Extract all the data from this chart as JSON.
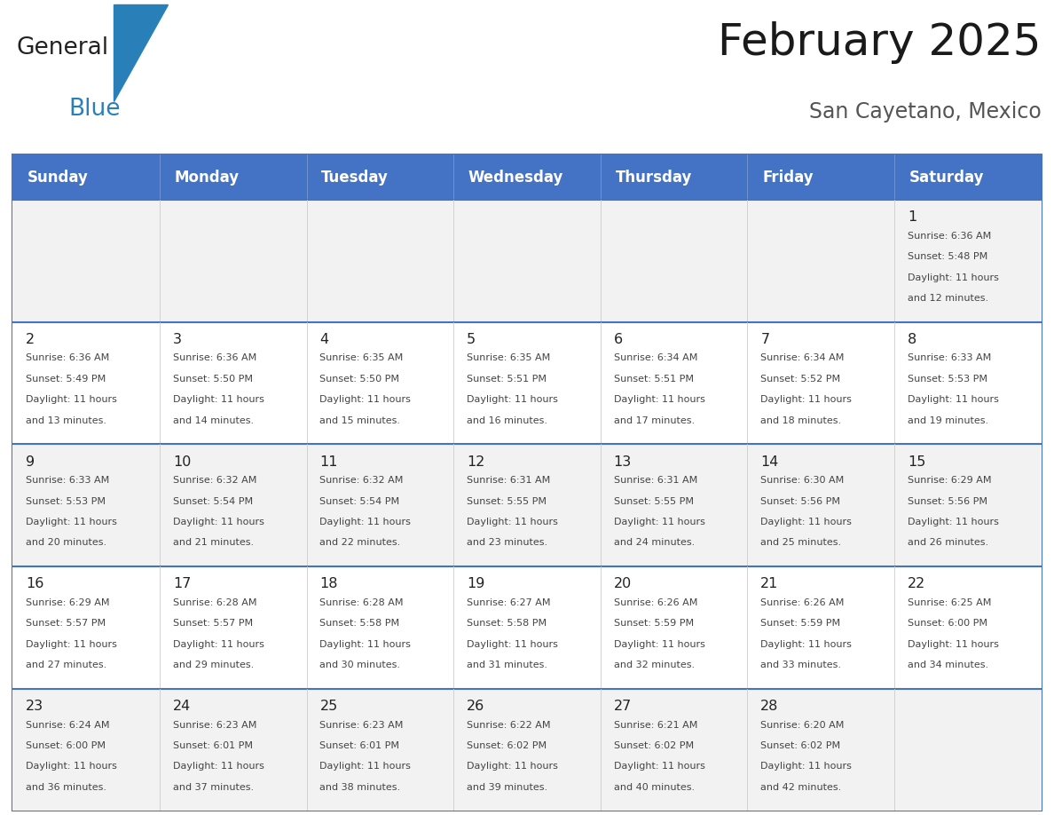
{
  "title": "February 2025",
  "subtitle": "San Cayetano, Mexico",
  "days_of_week": [
    "Sunday",
    "Monday",
    "Tuesday",
    "Wednesday",
    "Thursday",
    "Friday",
    "Saturday"
  ],
  "header_bg": "#4472C4",
  "header_text_color": "#FFFFFF",
  "cell_bg_light": "#F2F2F2",
  "cell_bg_white": "#FFFFFF",
  "cell_text_color": "#444444",
  "day_num_color": "#222222",
  "border_color": "#4472C4",
  "divider_color": "#CCCCCC",
  "logo_general_color": "#222222",
  "logo_blue_color": "#2980B9",
  "title_color": "#1a1a1a",
  "subtitle_color": "#555555",
  "calendar_data": [
    [
      null,
      null,
      null,
      null,
      null,
      null,
      {
        "day": "1",
        "sunrise": "6:36 AM",
        "sunset": "5:48 PM",
        "dl1": "Daylight: 11 hours",
        "dl2": "and 12 minutes."
      }
    ],
    [
      {
        "day": "2",
        "sunrise": "6:36 AM",
        "sunset": "5:49 PM",
        "dl1": "Daylight: 11 hours",
        "dl2": "and 13 minutes."
      },
      {
        "day": "3",
        "sunrise": "6:36 AM",
        "sunset": "5:50 PM",
        "dl1": "Daylight: 11 hours",
        "dl2": "and 14 minutes."
      },
      {
        "day": "4",
        "sunrise": "6:35 AM",
        "sunset": "5:50 PM",
        "dl1": "Daylight: 11 hours",
        "dl2": "and 15 minutes."
      },
      {
        "day": "5",
        "sunrise": "6:35 AM",
        "sunset": "5:51 PM",
        "dl1": "Daylight: 11 hours",
        "dl2": "and 16 minutes."
      },
      {
        "day": "6",
        "sunrise": "6:34 AM",
        "sunset": "5:51 PM",
        "dl1": "Daylight: 11 hours",
        "dl2": "and 17 minutes."
      },
      {
        "day": "7",
        "sunrise": "6:34 AM",
        "sunset": "5:52 PM",
        "dl1": "Daylight: 11 hours",
        "dl2": "and 18 minutes."
      },
      {
        "day": "8",
        "sunrise": "6:33 AM",
        "sunset": "5:53 PM",
        "dl1": "Daylight: 11 hours",
        "dl2": "and 19 minutes."
      }
    ],
    [
      {
        "day": "9",
        "sunrise": "6:33 AM",
        "sunset": "5:53 PM",
        "dl1": "Daylight: 11 hours",
        "dl2": "and 20 minutes."
      },
      {
        "day": "10",
        "sunrise": "6:32 AM",
        "sunset": "5:54 PM",
        "dl1": "Daylight: 11 hours",
        "dl2": "and 21 minutes."
      },
      {
        "day": "11",
        "sunrise": "6:32 AM",
        "sunset": "5:54 PM",
        "dl1": "Daylight: 11 hours",
        "dl2": "and 22 minutes."
      },
      {
        "day": "12",
        "sunrise": "6:31 AM",
        "sunset": "5:55 PM",
        "dl1": "Daylight: 11 hours",
        "dl2": "and 23 minutes."
      },
      {
        "day": "13",
        "sunrise": "6:31 AM",
        "sunset": "5:55 PM",
        "dl1": "Daylight: 11 hours",
        "dl2": "and 24 minutes."
      },
      {
        "day": "14",
        "sunrise": "6:30 AM",
        "sunset": "5:56 PM",
        "dl1": "Daylight: 11 hours",
        "dl2": "and 25 minutes."
      },
      {
        "day": "15",
        "sunrise": "6:29 AM",
        "sunset": "5:56 PM",
        "dl1": "Daylight: 11 hours",
        "dl2": "and 26 minutes."
      }
    ],
    [
      {
        "day": "16",
        "sunrise": "6:29 AM",
        "sunset": "5:57 PM",
        "dl1": "Daylight: 11 hours",
        "dl2": "and 27 minutes."
      },
      {
        "day": "17",
        "sunrise": "6:28 AM",
        "sunset": "5:57 PM",
        "dl1": "Daylight: 11 hours",
        "dl2": "and 29 minutes."
      },
      {
        "day": "18",
        "sunrise": "6:28 AM",
        "sunset": "5:58 PM",
        "dl1": "Daylight: 11 hours",
        "dl2": "and 30 minutes."
      },
      {
        "day": "19",
        "sunrise": "6:27 AM",
        "sunset": "5:58 PM",
        "dl1": "Daylight: 11 hours",
        "dl2": "and 31 minutes."
      },
      {
        "day": "20",
        "sunrise": "6:26 AM",
        "sunset": "5:59 PM",
        "dl1": "Daylight: 11 hours",
        "dl2": "and 32 minutes."
      },
      {
        "day": "21",
        "sunrise": "6:26 AM",
        "sunset": "5:59 PM",
        "dl1": "Daylight: 11 hours",
        "dl2": "and 33 minutes."
      },
      {
        "day": "22",
        "sunrise": "6:25 AM",
        "sunset": "6:00 PM",
        "dl1": "Daylight: 11 hours",
        "dl2": "and 34 minutes."
      }
    ],
    [
      {
        "day": "23",
        "sunrise": "6:24 AM",
        "sunset": "6:00 PM",
        "dl1": "Daylight: 11 hours",
        "dl2": "and 36 minutes."
      },
      {
        "day": "24",
        "sunrise": "6:23 AM",
        "sunset": "6:01 PM",
        "dl1": "Daylight: 11 hours",
        "dl2": "and 37 minutes."
      },
      {
        "day": "25",
        "sunrise": "6:23 AM",
        "sunset": "6:01 PM",
        "dl1": "Daylight: 11 hours",
        "dl2": "and 38 minutes."
      },
      {
        "day": "26",
        "sunrise": "6:22 AM",
        "sunset": "6:02 PM",
        "dl1": "Daylight: 11 hours",
        "dl2": "and 39 minutes."
      },
      {
        "day": "27",
        "sunrise": "6:21 AM",
        "sunset": "6:02 PM",
        "dl1": "Daylight: 11 hours",
        "dl2": "and 40 minutes."
      },
      {
        "day": "28",
        "sunrise": "6:20 AM",
        "sunset": "6:02 PM",
        "dl1": "Daylight: 11 hours",
        "dl2": "and 42 minutes."
      },
      null
    ]
  ]
}
